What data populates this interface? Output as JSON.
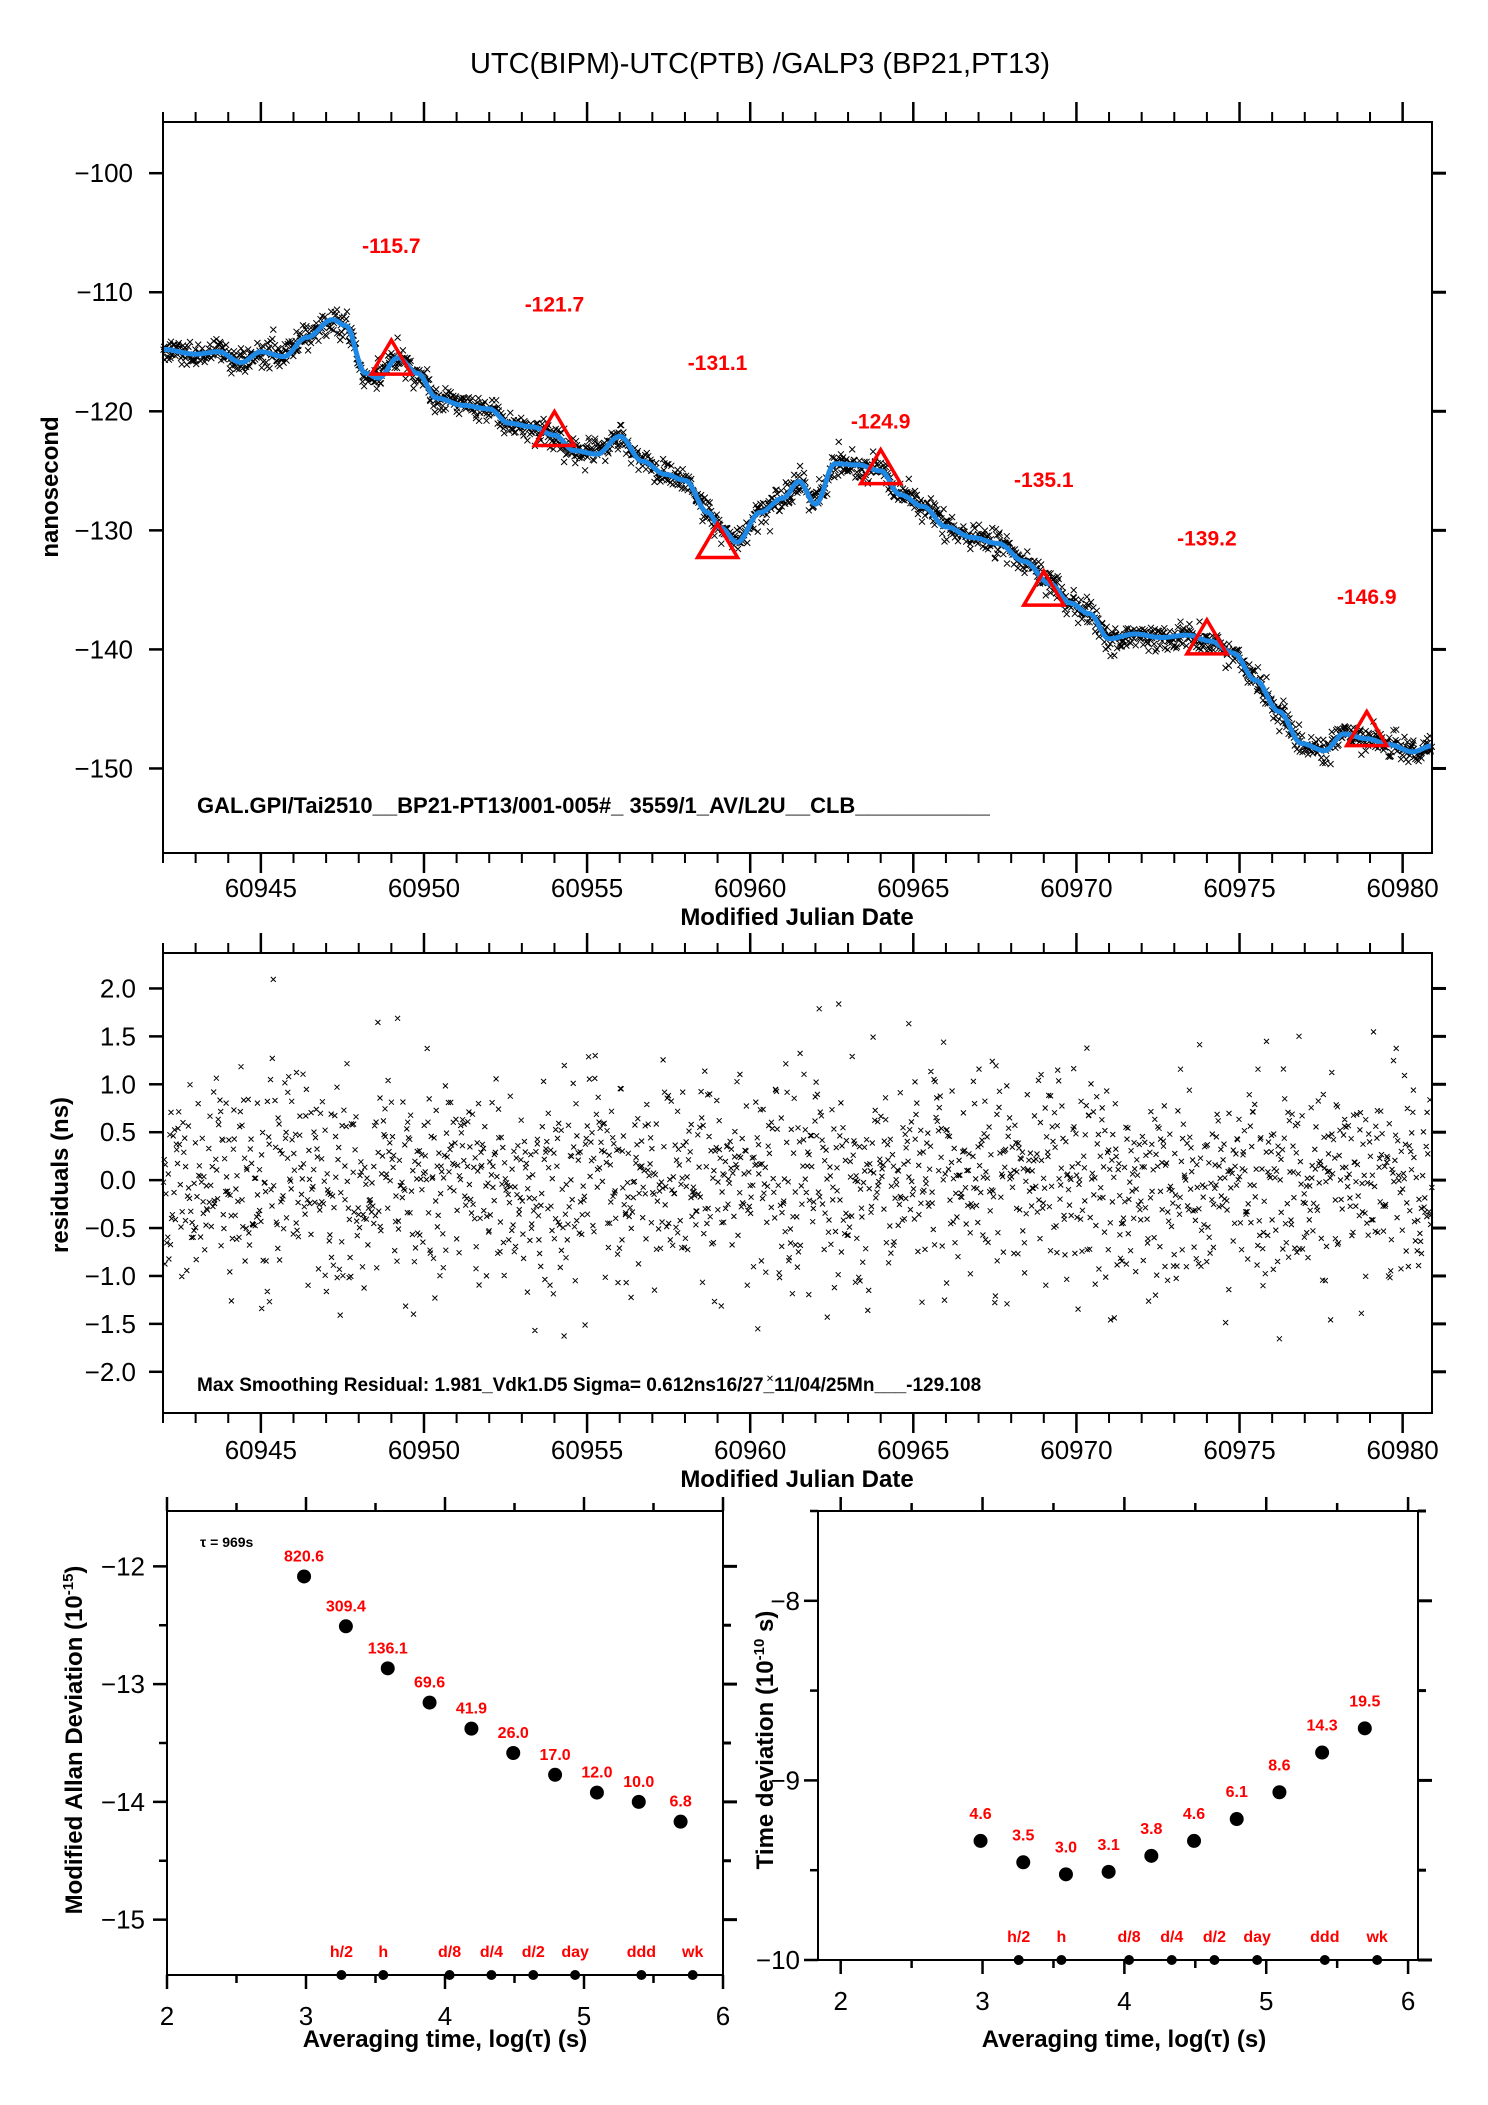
{
  "title": "UTC(BIPM)-UTC(PTB)  /GALP3  (BP21,PT13)",
  "colors": {
    "points": "#000000",
    "smooth_line": "#1e88e5",
    "markers": "#ff0000",
    "labels_red": "#ff0000"
  },
  "chart_data": [
    {
      "id": "timeseries",
      "type": "scatter",
      "title": "UTC(BIPM)-UTC(PTB)  /GALP3  (BP21,PT13)",
      "xlabel": "Modified Julian Date",
      "ylabel": "nanosecond",
      "xlim": [
        60942.0,
        60980.9
      ],
      "ylim": [
        -157.1,
        -95.7
      ],
      "xticks": [
        60945,
        60950,
        60955,
        60960,
        60965,
        60970,
        60975,
        60980
      ],
      "xtick_labels": [
        "60945",
        "60950",
        "60955",
        "60960",
        "60965",
        "60970",
        "60975",
        "60980"
      ],
      "yticks": [
        -100,
        -110,
        -120,
        -130,
        -140,
        -150
      ],
      "ytick_labels": [
        "−100",
        "−110",
        "−120",
        "−130",
        "−140",
        "−150"
      ],
      "annotation": "GAL.GPI/Tai2510__BP21-PT13/001-005#_  3559/1_AV/L2U__CLB___________",
      "smooth_curve": {
        "name": "smoothed",
        "x": [
          60942.0,
          60943.0,
          60943.7,
          60944.4,
          60945.0,
          60945.7,
          60946.4,
          60947.2,
          60947.6,
          60948.2,
          60948.6,
          60949.2,
          60949.8,
          60950.4,
          60951.2,
          60952.0,
          60952.6,
          60953.3,
          60954.0,
          60954.6,
          60955.3,
          60956.0,
          60956.7,
          60957.4,
          60958.0,
          60958.7,
          60959.1,
          60959.6,
          60960.3,
          60961.0,
          60961.5,
          60962.0,
          60962.6,
          60963.3,
          60964.0,
          60964.6,
          60965.3,
          60966.0,
          60966.8,
          60967.6,
          60968.4,
          60969.2,
          60969.8,
          60970.4,
          60971.0,
          60971.8,
          60972.6,
          60973.4,
          60974.1,
          60974.8,
          60975.5,
          60976.2,
          60976.9,
          60977.6,
          60978.2,
          60978.9,
          60979.6,
          60980.3,
          60980.9
        ],
        "y": [
          -114.8,
          -115.2,
          -115.0,
          -115.9,
          -115.0,
          -115.4,
          -113.8,
          -112.3,
          -112.8,
          -116.8,
          -117.2,
          -115.5,
          -116.8,
          -118.9,
          -119.5,
          -119.8,
          -121.0,
          -121.3,
          -122.0,
          -123.3,
          -123.6,
          -122.1,
          -124.2,
          -125.3,
          -125.8,
          -128.5,
          -129.8,
          -131.0,
          -128.5,
          -127.3,
          -125.9,
          -127.8,
          -124.4,
          -124.5,
          -125.0,
          -127.0,
          -128.0,
          -129.7,
          -130.6,
          -131.1,
          -132.6,
          -134.5,
          -136.1,
          -137.0,
          -139.1,
          -138.7,
          -139.0,
          -138.8,
          -139.3,
          -140.3,
          -142.6,
          -145.2,
          -147.9,
          -148.5,
          -147.1,
          -147.5,
          -148.0,
          -148.6,
          -148.1
        ]
      },
      "markers": [
        {
          "mjd": 60949.0,
          "value": -115.7,
          "label": "-115.7"
        },
        {
          "mjd": 60954.0,
          "value": -121.7,
          "label": "-121.7"
        },
        {
          "mjd": 60959.0,
          "value": -131.1,
          "label": "-131.1"
        },
        {
          "mjd": 60964.0,
          "value": -124.9,
          "label": "-124.9"
        },
        {
          "mjd": 60969.0,
          "value": -135.1,
          "label": "-135.1"
        },
        {
          "mjd": 60974.0,
          "value": -139.2,
          "label": "-139.2"
        },
        {
          "mjd": 60978.9,
          "value": -146.9,
          "label": "-146.9"
        }
      ],
      "points_note": "dense scatter (~3559 points) of raw differences, spread about ±1 ns around smoothed curve"
    },
    {
      "id": "residuals",
      "type": "scatter",
      "xlabel": "Modified Julian Date",
      "ylabel": "residuals (ns)",
      "xlim": [
        60942.0,
        60980.9
      ],
      "ylim": [
        -2.43,
        2.37
      ],
      "xticks": [
        60945,
        60950,
        60955,
        60960,
        60965,
        60970,
        60975,
        60980
      ],
      "xtick_labels": [
        "60945",
        "60950",
        "60955",
        "60960",
        "60965",
        "60970",
        "60975",
        "60980"
      ],
      "yticks": [
        2.0,
        1.5,
        1.0,
        0.5,
        0.0,
        -0.5,
        -1.0,
        -1.5,
        -2.0
      ],
      "ytick_labels": [
        "2.0",
        "1.5",
        "1.0",
        "0.5",
        "0.0",
        "−0.5",
        "−1.0",
        "−1.5",
        "−2.0"
      ],
      "annotation": "Max Smoothing Residual: 1.981_Vdk1.D5  Sigma= 0.612ns16/27_11/04/25Mn___-129.108",
      "sigma_ns": 0.612,
      "max_residual_ns": 1.981
    },
    {
      "id": "mdev",
      "type": "scatter",
      "xlabel": "Averaging time, log(τ) (s)",
      "ylabel": "Modified Allan Deviation (10",
      "ylabel_exp": "-15",
      "ylabel_end": ")",
      "xlim": [
        2,
        6
      ],
      "ylim": [
        -15.47,
        -11.53
      ],
      "xticks": [
        2,
        3,
        4,
        5,
        6
      ],
      "xtick_labels": [
        "2",
        "3",
        "4",
        "5",
        "6"
      ],
      "yticks": [
        -12,
        -13,
        -14,
        -15
      ],
      "ytick_labels": [
        "−12",
        "−13",
        "−14",
        "−15"
      ],
      "tau0_label": "τ = 969s",
      "x": [
        2.986,
        3.287,
        3.588,
        3.889,
        4.19,
        4.491,
        4.792,
        5.093,
        5.394,
        5.695
      ],
      "y": [
        -12.086,
        -12.509,
        -12.866,
        -13.157,
        -13.378,
        -13.585,
        -13.77,
        -13.921,
        -14.0,
        -14.168
      ],
      "point_labels": [
        "820.6",
        "309.4",
        "136.1",
        "69.6",
        "41.9",
        "26.0",
        "17.0",
        "12.0",
        "10.0",
        "6.8"
      ],
      "time_markers": [
        {
          "label": "h/2",
          "x": 3.255
        },
        {
          "label": "h",
          "x": 3.556
        },
        {
          "label": "d/8",
          "x": 4.033
        },
        {
          "label": "d/4",
          "x": 4.334
        },
        {
          "label": "d/2",
          "x": 4.635
        },
        {
          "label": "day",
          "x": 4.936
        },
        {
          "label": "ddd",
          "x": 5.413
        },
        {
          "label": "wk",
          "x": 5.782
        }
      ]
    },
    {
      "id": "tdev",
      "type": "scatter",
      "xlabel": "Averaging time, log(τ) (s)",
      "ylabel": "Time deviation (10",
      "ylabel_exp": "-10",
      "ylabel_end": " s)",
      "xlim": [
        1.84,
        6.07
      ],
      "ylim": [
        -10.0,
        -7.5
      ],
      "xticks": [
        2,
        3,
        4,
        5,
        6
      ],
      "xtick_labels": [
        "2",
        "3",
        "4",
        "5",
        "6"
      ],
      "yticks": [
        -8,
        -9,
        -10
      ],
      "ytick_labels": [
        "−8",
        "−9",
        "−10"
      ],
      "x": [
        2.986,
        3.287,
        3.588,
        3.889,
        4.19,
        4.491,
        4.792,
        5.093,
        5.394,
        5.695
      ],
      "y": [
        -9.337,
        -9.456,
        -9.523,
        -9.509,
        -9.42,
        -9.337,
        -9.215,
        -9.066,
        -8.845,
        -8.71
      ],
      "point_labels": [
        "4.6",
        "3.5",
        "3.0",
        "3.1",
        "3.8",
        "4.6",
        "6.1",
        "8.6",
        "14.3",
        "19.5"
      ],
      "time_markers": [
        {
          "label": "h/2",
          "x": 3.255
        },
        {
          "label": "h",
          "x": 3.556
        },
        {
          "label": "d/8",
          "x": 4.033
        },
        {
          "label": "d/4",
          "x": 4.334
        },
        {
          "label": "d/2",
          "x": 4.635
        },
        {
          "label": "day",
          "x": 4.936
        },
        {
          "label": "ddd",
          "x": 5.413
        },
        {
          "label": "wk",
          "x": 5.782
        }
      ]
    }
  ]
}
